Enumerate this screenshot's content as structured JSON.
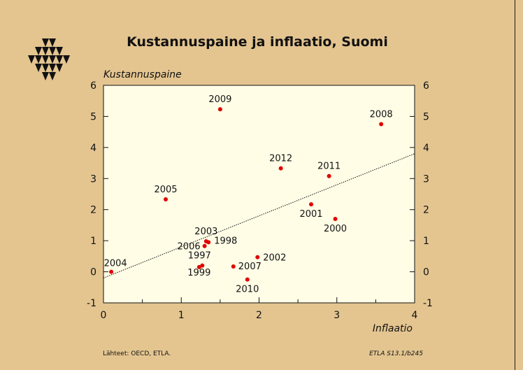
{
  "chart_data": {
    "type": "scatter",
    "title": "Kustannuspaine ja inflaatio, Suomi",
    "xlabel": "Inflaatio",
    "ylabel": "Kustannuspaine",
    "xlim": [
      0,
      4
    ],
    "ylim": [
      -1,
      6
    ],
    "xticks": [
      "0",
      "1",
      "2",
      "3",
      "4"
    ],
    "yticks": [
      "-1",
      "0",
      "1",
      "2",
      "3",
      "4",
      "5",
      "6"
    ],
    "points": [
      {
        "label": "1997",
        "x": 1.27,
        "y": 0.2
      },
      {
        "label": "1998",
        "x": 1.35,
        "y": 0.95
      },
      {
        "label": "1999",
        "x": 1.23,
        "y": 0.15
      },
      {
        "label": "2000",
        "x": 2.98,
        "y": 1.7
      },
      {
        "label": "2001",
        "x": 2.67,
        "y": 2.17
      },
      {
        "label": "2002",
        "x": 1.98,
        "y": 0.47
      },
      {
        "label": "2003",
        "x": 1.32,
        "y": 0.98
      },
      {
        "label": "2004",
        "x": 0.1,
        "y": 0.0
      },
      {
        "label": "2005",
        "x": 0.8,
        "y": 2.33
      },
      {
        "label": "2006",
        "x": 1.3,
        "y": 0.83
      },
      {
        "label": "2007",
        "x": 1.67,
        "y": 0.17
      },
      {
        "label": "2008",
        "x": 3.57,
        "y": 4.75
      },
      {
        "label": "2009",
        "x": 1.5,
        "y": 5.23
      },
      {
        "label": "2010",
        "x": 1.85,
        "y": -0.25
      },
      {
        "label": "2011",
        "x": 2.9,
        "y": 3.08
      },
      {
        "label": "2012",
        "x": 2.28,
        "y": 3.33
      }
    ],
    "trendline": {
      "x": [
        0,
        4
      ],
      "y": [
        -0.2,
        3.8
      ]
    },
    "grid": false,
    "colors": {
      "points": "#e00000",
      "plot_bg": "#fffde6",
      "page_bg": "#e4c590"
    }
  },
  "footer": {
    "source": "Lähteet:   OECD, ETLA.",
    "code": "ETLA S13.1/b245"
  }
}
